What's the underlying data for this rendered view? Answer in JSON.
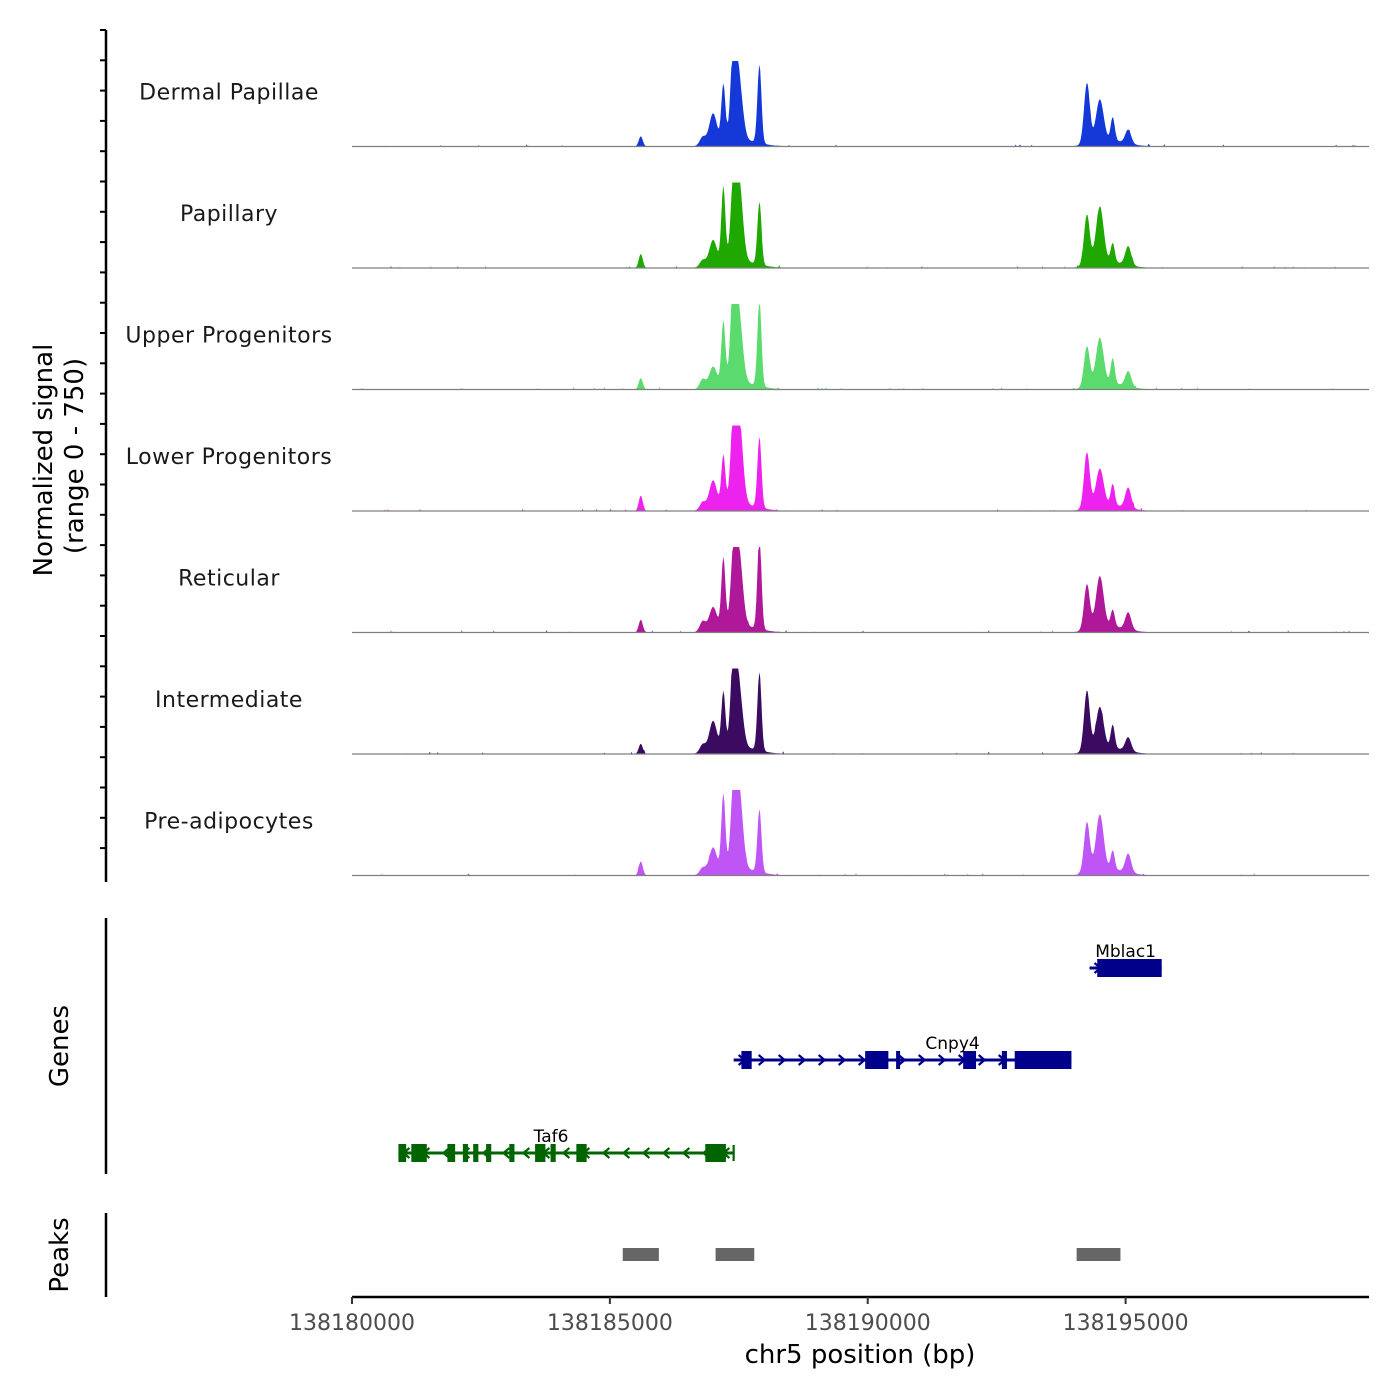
{
  "chart_data": {
    "type": "area",
    "title": "",
    "ylabel_line1": "Normalized signal",
    "ylabel_line2": "(range 0 - 750)",
    "yrange": [
      0,
      750
    ],
    "xlabel": "chr5 position (bp)",
    "xlim": [
      138180000,
      138199700
    ],
    "xticks": [
      "138180000",
      "138185000",
      "138190000",
      "138195000"
    ],
    "tracks": [
      {
        "name": "Dermal Papillae",
        "color": "#1539D8"
      },
      {
        "name": "Papillary",
        "color": "#1FA800"
      },
      {
        "name": "Upper Progenitors",
        "color": "#5BDB6E"
      },
      {
        "name": "Lower Progenitors",
        "color": "#EE22EE"
      },
      {
        "name": "Reticular",
        "color": "#B0189A"
      },
      {
        "name": "Intermediate",
        "color": "#3A0B60"
      },
      {
        "name": "Pre-adipocytes",
        "color": "#BF55F5"
      }
    ],
    "peak_profile": [
      {
        "position": 138185600,
        "height": 0.15
      },
      {
        "position": 138186800,
        "height": 0.1
      },
      {
        "position": 138187000,
        "height": 0.3
      },
      {
        "position": 138187200,
        "height": 0.75
      },
      {
        "position": 138187400,
        "height": 0.95
      },
      {
        "position": 138187500,
        "height": 0.85
      },
      {
        "position": 138187900,
        "height": 0.92
      },
      {
        "position": 138194250,
        "height": 0.6
      },
      {
        "position": 138194500,
        "height": 0.55
      },
      {
        "position": 138194750,
        "height": 0.25
      },
      {
        "position": 138195050,
        "height": 0.2
      }
    ],
    "genes_label": "Genes",
    "genes": [
      {
        "name": "Mblac1",
        "strand": "+",
        "start": 138194300,
        "end": 138195700,
        "color": "#00008B",
        "exons": [
          [
            138194450,
            138195700
          ]
        ]
      },
      {
        "name": "Cnpy4",
        "strand": "+",
        "start": 138187400,
        "end": 138193950,
        "color": "#00008B",
        "exons": [
          [
            138187550,
            138187750
          ],
          [
            138189950,
            138190400
          ],
          [
            138190550,
            138190600
          ],
          [
            138191850,
            138192100
          ],
          [
            138192600,
            138192700
          ],
          [
            138192850,
            138193950
          ]
        ]
      },
      {
        "name": "Taf6",
        "strand": "-",
        "start": 138180900,
        "end": 138187400,
        "color": "#006400",
        "exons": [
          [
            138180900,
            138181050
          ],
          [
            138181150,
            138181450
          ],
          [
            138181850,
            138182000
          ],
          [
            138182150,
            138182250
          ],
          [
            138182350,
            138182450
          ],
          [
            138182600,
            138182700
          ],
          [
            138183050,
            138183150
          ],
          [
            138183550,
            138183750
          ],
          [
            138183850,
            138183950
          ],
          [
            138184350,
            138184550
          ],
          [
            138186850,
            138187250
          ]
        ]
      }
    ],
    "peaks_label": "Peaks",
    "peaks": [
      {
        "start": 138185250,
        "end": 138185950
      },
      {
        "start": 138187050,
        "end": 138187800
      },
      {
        "start": 138194050,
        "end": 138194900
      }
    ]
  }
}
